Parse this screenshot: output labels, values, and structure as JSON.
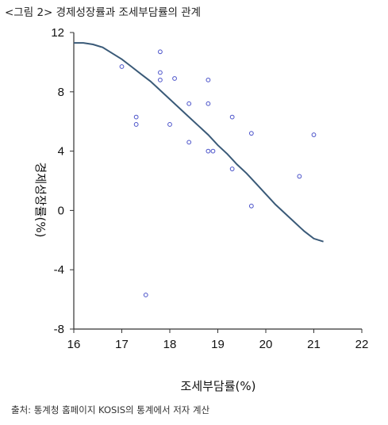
{
  "figure_title": "<그림 2> 경제성장률과 조세부담률의 관계",
  "source_note": "출처: 통계청 홈페이지 KOSIS의 통계에서 저자 계산",
  "colors": {
    "curve": "#3a5a78",
    "points": "#4a52c9",
    "axis": "#333333"
  },
  "chart_data": {
    "type": "scatter",
    "xlabel": "조세부담률(%)",
    "ylabel": "경제성장률(%)",
    "xlim": [
      16,
      22
    ],
    "ylim": [
      -8,
      12
    ],
    "x_ticks": [
      16,
      17,
      18,
      19,
      20,
      21,
      22
    ],
    "y_ticks": [
      12,
      8,
      4,
      0,
      -4,
      -8
    ],
    "grid": false,
    "legend": "none",
    "series": [
      {
        "type": "scatter",
        "x": [
          17.0,
          17.3,
          17.3,
          17.5,
          17.8,
          17.8,
          17.8,
          18.0,
          18.1,
          18.4,
          18.4,
          18.8,
          18.8,
          18.8,
          18.9,
          19.3,
          19.3,
          19.7,
          19.7,
          20.7,
          21.0
        ],
        "y": [
          9.7,
          6.3,
          5.8,
          -5.7,
          10.7,
          9.3,
          8.8,
          5.8,
          8.9,
          7.2,
          4.6,
          8.8,
          7.2,
          4.0,
          4.0,
          6.3,
          2.8,
          5.2,
          0.3,
          2.3,
          5.1
        ]
      },
      {
        "type": "line",
        "x": [
          16.0,
          16.2,
          16.4,
          16.6,
          16.8,
          17.0,
          17.2,
          17.4,
          17.6,
          17.8,
          18.0,
          18.2,
          18.4,
          18.6,
          18.8,
          19.0,
          19.2,
          19.4,
          19.6,
          19.8,
          20.0,
          20.2,
          20.4,
          20.6,
          20.8,
          21.0,
          21.2
        ],
        "y": [
          11.3,
          11.3,
          11.2,
          11.0,
          10.6,
          10.2,
          9.7,
          9.2,
          8.7,
          8.1,
          7.5,
          6.9,
          6.3,
          5.7,
          5.1,
          4.4,
          3.8,
          3.1,
          2.5,
          1.8,
          1.1,
          0.4,
          -0.2,
          -0.8,
          -1.4,
          -1.9,
          -2.1
        ]
      }
    ]
  }
}
